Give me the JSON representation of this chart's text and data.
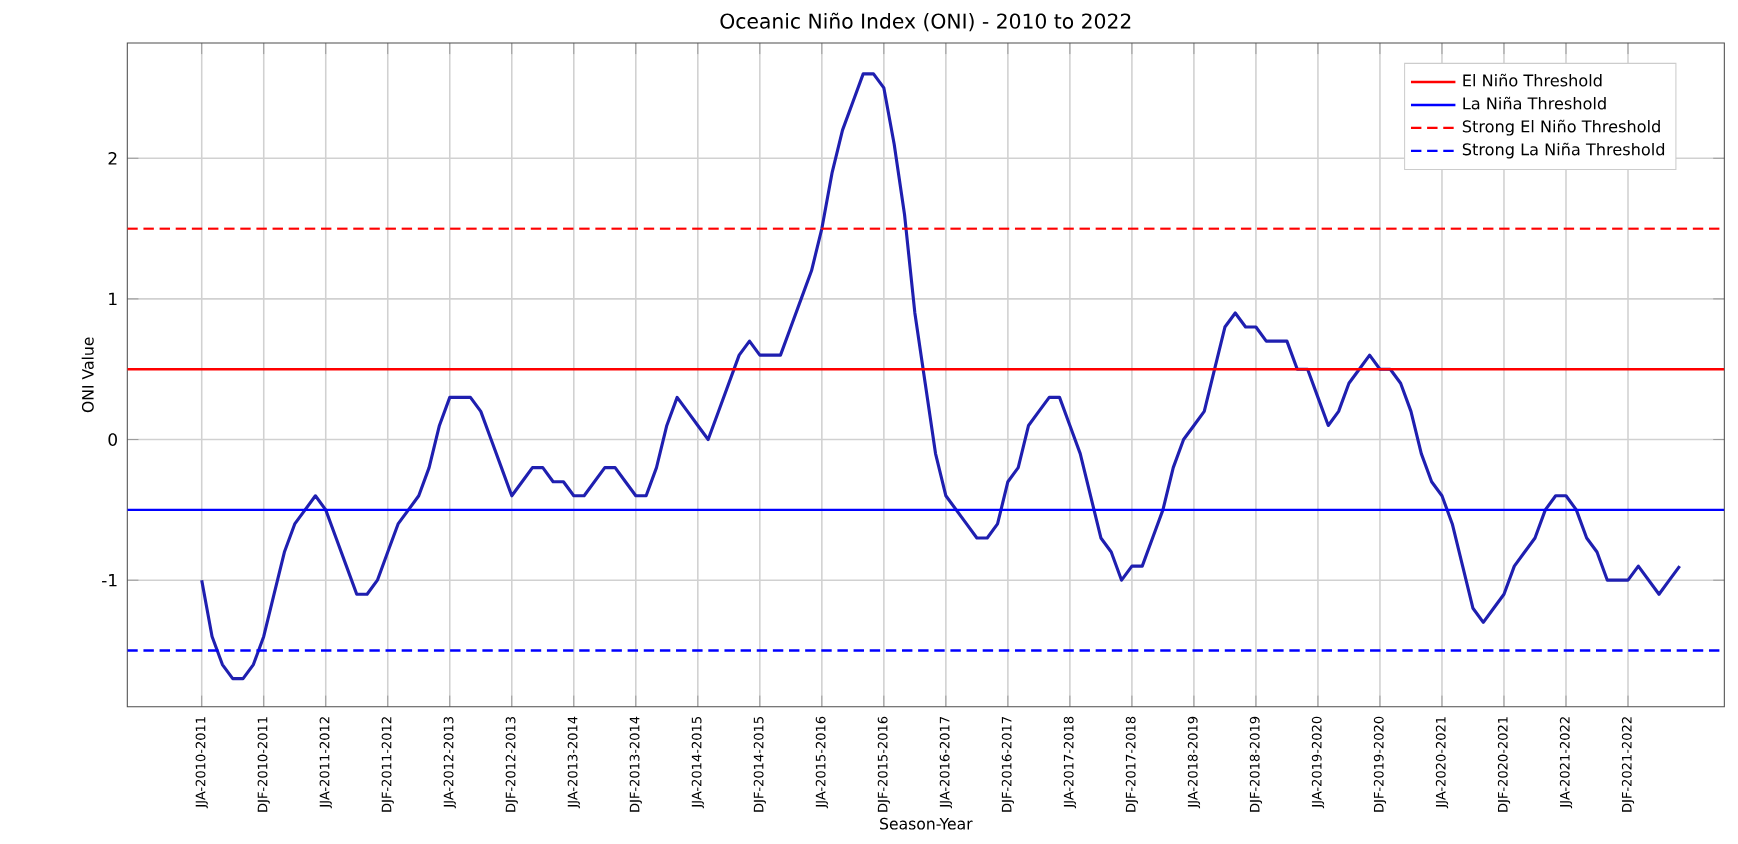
{
  "chart_data": {
    "type": "line",
    "title": "Oceanic Niño Index (ONI) - 2010 to 2022",
    "xlabel": "Season-Year",
    "ylabel": "ONI Value",
    "categories": [
      "JJA-2010-2011",
      null,
      null,
      null,
      null,
      null,
      "DJF-2010-2011",
      null,
      null,
      null,
      null,
      null,
      "JJA-2011-2012",
      null,
      null,
      null,
      null,
      null,
      "DJF-2011-2012",
      null,
      null,
      null,
      null,
      null,
      "JJA-2012-2013",
      null,
      null,
      null,
      null,
      null,
      "DJF-2012-2013",
      null,
      null,
      null,
      null,
      null,
      "JJA-2013-2014",
      null,
      null,
      null,
      null,
      null,
      "DJF-2013-2014",
      null,
      null,
      null,
      null,
      null,
      "JJA-2014-2015",
      null,
      null,
      null,
      null,
      null,
      "DJF-2014-2015",
      null,
      null,
      null,
      null,
      null,
      "JJA-2015-2016",
      null,
      null,
      null,
      null,
      null,
      "DJF-2015-2016",
      null,
      null,
      null,
      null,
      null,
      "JJA-2016-2017",
      null,
      null,
      null,
      null,
      null,
      "DJF-2016-2017",
      null,
      null,
      null,
      null,
      null,
      "JJA-2017-2018",
      null,
      null,
      null,
      null,
      null,
      "DJF-2017-2018",
      null,
      null,
      null,
      null,
      null,
      "JJA-2018-2019",
      null,
      null,
      null,
      null,
      null,
      "DJF-2018-2019",
      null,
      null,
      null,
      null,
      null,
      "JJA-2019-2020",
      null,
      null,
      null,
      null,
      null,
      "DJF-2019-2020",
      null,
      null,
      null,
      null,
      null,
      "JJA-2020-2021",
      null,
      null,
      null,
      null,
      null,
      "DJF-2020-2021",
      null,
      null,
      null,
      null,
      null,
      "JJA-2021-2022",
      null,
      null,
      null,
      null,
      null,
      "DJF-2021-2022",
      null,
      null,
      null,
      null,
      null
    ],
    "series": [
      {
        "color": "#1f1fb0",
        "values": [
          -1.0,
          -1.4,
          -1.6,
          -1.7,
          -1.7,
          -1.6,
          -1.4,
          -1.1,
          -0.8,
          -0.6,
          -0.5,
          -0.4,
          -0.5,
          -0.7,
          -0.9,
          -1.1,
          -1.1,
          -1.0,
          -0.8,
          -0.6,
          -0.5,
          -0.4,
          -0.2,
          0.1,
          0.3,
          0.3,
          0.3,
          0.2,
          0.0,
          -0.2,
          -0.4,
          -0.3,
          -0.2,
          -0.2,
          -0.3,
          -0.3,
          -0.4,
          -0.4,
          -0.3,
          -0.2,
          -0.2,
          -0.3,
          -0.4,
          -0.4,
          -0.2,
          0.1,
          0.3,
          0.2,
          0.1,
          0.0,
          0.2,
          0.4,
          0.6,
          0.7,
          0.6,
          0.6,
          0.6,
          0.8,
          1.0,
          1.2,
          1.5,
          1.9,
          2.2,
          2.4,
          2.6,
          2.6,
          2.5,
          2.1,
          1.6,
          0.9,
          0.4,
          -0.1,
          -0.4,
          -0.5,
          -0.6,
          -0.7,
          -0.7,
          -0.6,
          -0.3,
          -0.2,
          0.1,
          0.2,
          0.3,
          0.3,
          0.1,
          -0.1,
          -0.4,
          -0.7,
          -0.8,
          -1.0,
          -0.9,
          -0.9,
          -0.7,
          -0.5,
          -0.2,
          0.0,
          0.1,
          0.2,
          0.5,
          0.8,
          0.9,
          0.8,
          0.8,
          0.7,
          0.7,
          0.7,
          0.5,
          0.5,
          0.3,
          0.1,
          0.2,
          0.4,
          0.5,
          0.6,
          0.5,
          0.5,
          0.4,
          0.2,
          -0.1,
          -0.3,
          -0.4,
          -0.6,
          -0.9,
          -1.2,
          -1.3,
          -1.2,
          -1.1,
          -0.9,
          -0.8,
          -0.7,
          -0.5,
          -0.4,
          -0.4,
          -0.5,
          -0.7,
          -0.8,
          -1.0,
          -1.0,
          -1.0,
          -0.9,
          -1.0,
          -1.1,
          -1.0,
          -0.9
        ]
      }
    ],
    "ref_lines": [
      {
        "axis": "y",
        "value": 0.5,
        "label": "El Niño Threshold",
        "color": "#ff0000",
        "line_style": "solid"
      },
      {
        "axis": "y",
        "value": -0.5,
        "label": "La Niña Threshold",
        "color": "#0000ff",
        "line_style": "solid"
      },
      {
        "axis": "y",
        "value": 1.5,
        "label": "Strong El Niño Threshold",
        "color": "#ff0000",
        "line_style": "dashed"
      },
      {
        "axis": "y",
        "value": -1.5,
        "label": "Strong La Niña Threshold",
        "color": "#0000ff",
        "line_style": "dashed"
      }
    ],
    "ylim": [
      -1.9,
      2.82
    ],
    "yticks": [
      -1,
      0,
      1,
      2
    ],
    "grid": true,
    "legend": "top right"
  }
}
